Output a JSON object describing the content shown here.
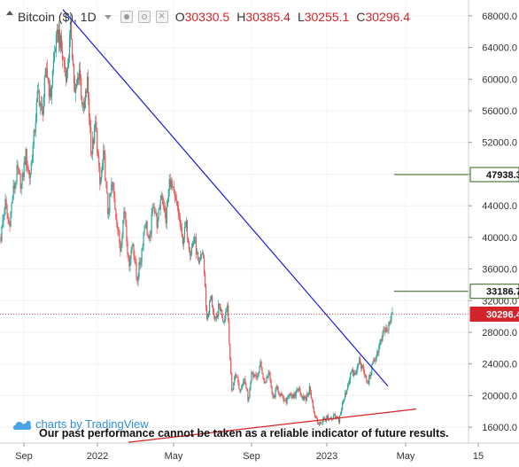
{
  "legend": {
    "symbol": "Bitcoin ($), 1D",
    "open_key": "O",
    "open": "30330.5",
    "high_key": "H",
    "high": "30385.4",
    "low_key": "L",
    "low": "30255.1",
    "close_key": "C",
    "close": "30296.4",
    "icons": [
      "chevron-down-icon",
      "eye-icon",
      "gear-icon",
      "close-icon"
    ]
  },
  "branding": {
    "text": "charts by TradingView",
    "icon": "tradingview-cloud-icon"
  },
  "disclaimer": "Our past performance cannot be taken as a reliable indicator of future results.",
  "colors": {
    "up": "#26a69a",
    "down": "#ef5350",
    "downtrend": "#1a1ad9",
    "uptrend": "#d62323",
    "level_line": "#2f5f1a",
    "current_price": "#d3242b",
    "tv_brand": "#2f8fdc"
  },
  "chart_data": {
    "type": "candlestick",
    "x_ticks": [
      "Sep",
      "2022",
      "May",
      "Sep",
      "2023",
      "May",
      "15"
    ],
    "y_ticks": [
      "68000.0",
      "64000.0",
      "60000.0",
      "56000.0",
      "52000.0",
      "48000.0",
      "44000.0",
      "40000.0",
      "36000.0",
      "32000.0",
      "28000.0",
      "24000.0",
      "20000.0",
      "16000.0"
    ],
    "ylim": [
      14000,
      70000
    ],
    "price_levels": [
      {
        "label": "47938.3",
        "value": 47938.3
      },
      {
        "label": "33186.7",
        "value": 33186.7
      }
    ],
    "current_price": {
      "label": "30296.4",
      "value": 30296.4
    },
    "series": [
      {
        "values": [
          40000,
          44500,
          41500,
          45800,
          48500,
          46500,
          50500,
          47500,
          52500,
          58500,
          55500,
          61500,
          57500,
          63500,
          66000,
          62500,
          60500,
          66500,
          57500,
          61500,
          55500,
          59500,
          50500,
          54500,
          46500,
          50500,
          43000,
          47000,
          42500,
          38500,
          44000,
          36500,
          39500,
          34500,
          37500,
          42500,
          39000,
          44500,
          41500,
          46000,
          42000,
          47500,
          45000,
          43500,
          39500,
          41500,
          38000,
          40000,
          36000,
          38500,
          29500,
          32500,
          29000,
          31500,
          29500,
          31500,
          20500,
          23000,
          20500,
          22500,
          19500,
          23000,
          22000,
          24000,
          21500,
          23000,
          19500,
          21000,
          20000,
          19000,
          20500,
          19500,
          21000,
          20000,
          19500,
          21000,
          17500,
          16500,
          16800,
          17200,
          16800,
          17300,
          16900,
          19000,
          21000,
          23000,
          22500,
          24500,
          23000,
          21500,
          23500,
          25000,
          26500,
          28000,
          28500,
          30300
        ]
      }
    ]
  }
}
